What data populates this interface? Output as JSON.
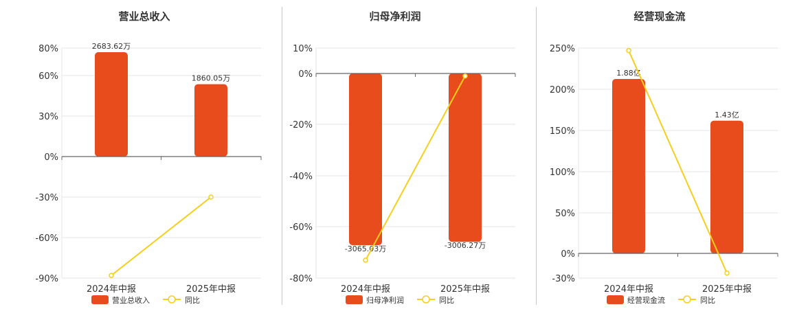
{
  "colors": {
    "bar": "#e84c1d",
    "line": "#f5cf1b",
    "grid": "#e6e6e6",
    "axis": "#666666"
  },
  "chart_data": [
    {
      "type": "bar",
      "title": "营业总收入",
      "categories": [
        "2024年中报",
        "2025年中报"
      ],
      "bar_values": [
        2683.62,
        1860.05
      ],
      "bar_labels": [
        "2683.62万",
        "1860.05万"
      ],
      "line_values": [
        -88,
        -30
      ],
      "yticks": [
        "80%",
        "60%",
        "30%",
        "0%",
        "-30%",
        "-60%",
        "-90%"
      ],
      "legend": [
        "营业总收入",
        "同比"
      ]
    },
    {
      "type": "bar",
      "title": "归母净利润",
      "categories": [
        "2024年中报",
        "2025年中报"
      ],
      "bar_values": [
        -3065.03,
        -3006.27
      ],
      "bar_labels": [
        "-3065.03万",
        "-3006.27万"
      ],
      "line_values": [
        -73,
        -1
      ],
      "yticks": [
        "10%",
        "0%",
        "-20%",
        "-40%",
        "-60%",
        "-80%"
      ],
      "legend": [
        "归母净利润",
        "同比"
      ]
    },
    {
      "type": "bar",
      "title": "经营现金流",
      "categories": [
        "2024年中报",
        "2025年中报"
      ],
      "bar_values": [
        1.88,
        1.43
      ],
      "bar_labels": [
        "1.88亿",
        "1.43亿"
      ],
      "line_values": [
        247,
        -24
      ],
      "yticks": [
        "250%",
        "200%",
        "150%",
        "100%",
        "50%",
        "0%",
        "-30%"
      ],
      "legend": [
        "经营现金流",
        "同比"
      ]
    }
  ]
}
